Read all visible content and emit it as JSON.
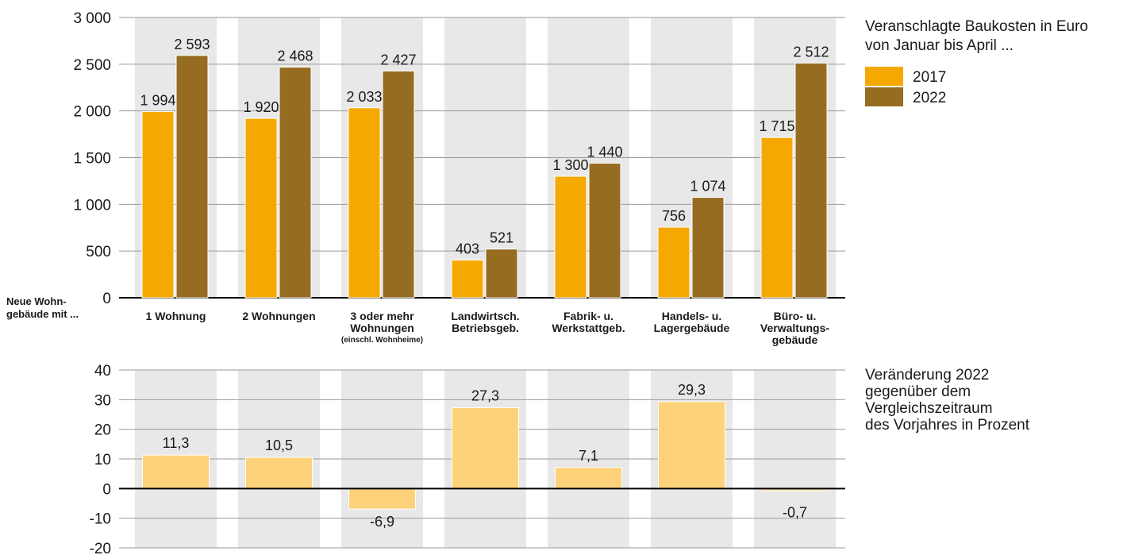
{
  "colors": {
    "c2017": "#f5a800",
    "c2022": "#956c20",
    "change": "#fdd27a",
    "band": "#e8e8e8",
    "grid": "#9a9a9a",
    "axis": "#000000"
  },
  "top_legend": {
    "title_line1": "Veranschlagte Baukosten in Euro",
    "title_line2": "von Januar bis April ..."
  },
  "bottom_legend": {
    "lines": [
      "Veränderung 2022",
      "gegenüber dem",
      "Vergleichszeitraum",
      "des Vorjahres in Prozent"
    ]
  },
  "side_label": {
    "line1": "Neue Wohn-",
    "line2": "gebäude mit ..."
  },
  "chart_data": [
    {
      "type": "bar",
      "categories": [
        {
          "lines": [
            "1 Wohnung"
          ],
          "small": ""
        },
        {
          "lines": [
            "2 Wohnungen"
          ],
          "small": ""
        },
        {
          "lines": [
            "3 oder mehr",
            "Wohnungen"
          ],
          "small": "(einschl. Wohnheime)"
        },
        {
          "lines": [
            "Landwirtsch.",
            "Betriebsgeb."
          ],
          "small": ""
        },
        {
          "lines": [
            "Fabrik- u.",
            "Werkstattgeb."
          ],
          "small": ""
        },
        {
          "lines": [
            "Handels- u.",
            "Lagergebäude"
          ],
          "small": ""
        },
        {
          "lines": [
            "Büro- u.",
            "Verwaltungs-",
            "gebäude"
          ],
          "small": ""
        }
      ],
      "series": [
        {
          "name": "2017",
          "values": [
            1994,
            1920,
            2033,
            403,
            1300,
            756,
            1715
          ],
          "labels": [
            "1 994",
            "1 920",
            "2 033",
            "403",
            "1 300",
            "756",
            "1 715"
          ]
        },
        {
          "name": "2022",
          "values": [
            2593,
            2468,
            2427,
            521,
            1440,
            1074,
            2512
          ],
          "labels": [
            "2 593",
            "2 468",
            "2 427",
            "521",
            "1 440",
            "1 074",
            "2 512"
          ]
        }
      ],
      "ylim": [
        0,
        3000
      ],
      "yticks": [
        0,
        500,
        1000,
        1500,
        2000,
        2500,
        3000
      ],
      "ytick_labels": [
        "0",
        "500",
        "1 000",
        "1 500",
        "2 000",
        "2 500",
        "3 000"
      ],
      "legend": "right",
      "grid": true
    },
    {
      "type": "bar",
      "values": [
        11.3,
        10.5,
        -6.9,
        27.3,
        7.1,
        29.3,
        -0.7
      ],
      "labels": [
        "11,3",
        "10,5",
        "-6,9",
        "27,3",
        "7,1",
        "29,3",
        "-0,7"
      ],
      "ylim": [
        -20,
        40
      ],
      "yticks": [
        -20,
        -10,
        0,
        10,
        20,
        30,
        40
      ],
      "ytick_labels": [
        "-20",
        "-10",
        "0",
        "10",
        "20",
        "30",
        "40"
      ],
      "grid": true
    }
  ]
}
